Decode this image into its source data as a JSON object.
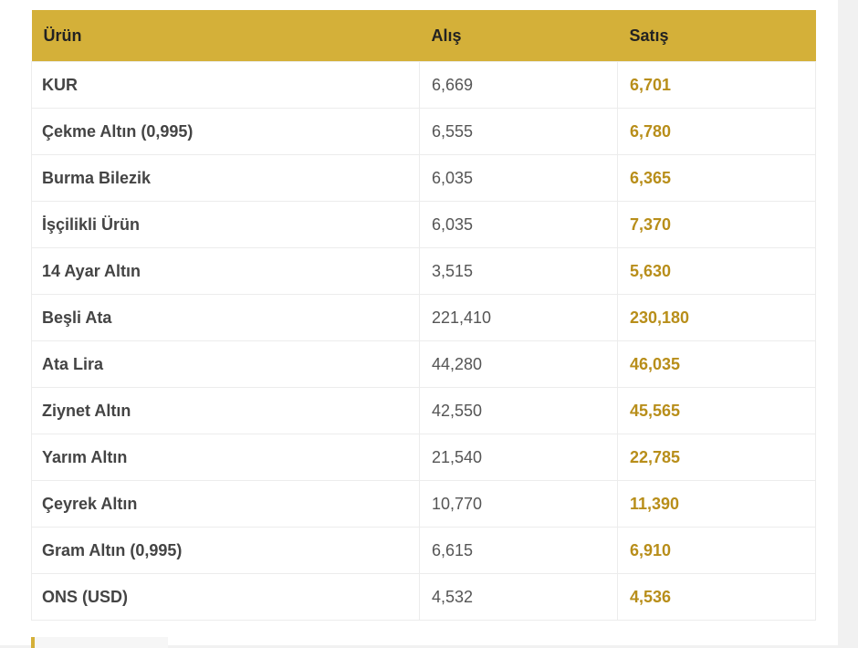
{
  "table": {
    "header": [
      "Ürün",
      "Alış",
      "Satış"
    ],
    "rows": [
      [
        "KUR",
        "6,669",
        "6,701"
      ],
      [
        "Çekme Altın (0,995)",
        "6,555",
        "6,780"
      ],
      [
        "Burma Bilezik",
        "6,035",
        "6,365"
      ],
      [
        "İşçilikli Ürün",
        "6,035",
        "7,370"
      ],
      [
        "14 Ayar Altın",
        "3,515",
        "5,630"
      ],
      [
        "Beşli Ata",
        "221,410",
        "230,180"
      ],
      [
        "Ata Lira",
        "44,280",
        "46,035"
      ],
      [
        "Ziynet Altın",
        "42,550",
        "45,565"
      ],
      [
        "Yarım Altın",
        "21,540",
        "22,785"
      ],
      [
        "Çeyrek Altın",
        "10,770",
        "11,390"
      ],
      [
        "Gram Altın (0,995)",
        "6,615",
        "6,910"
      ],
      [
        "ONS (USD)",
        "4,532",
        "4,536"
      ]
    ]
  }
}
